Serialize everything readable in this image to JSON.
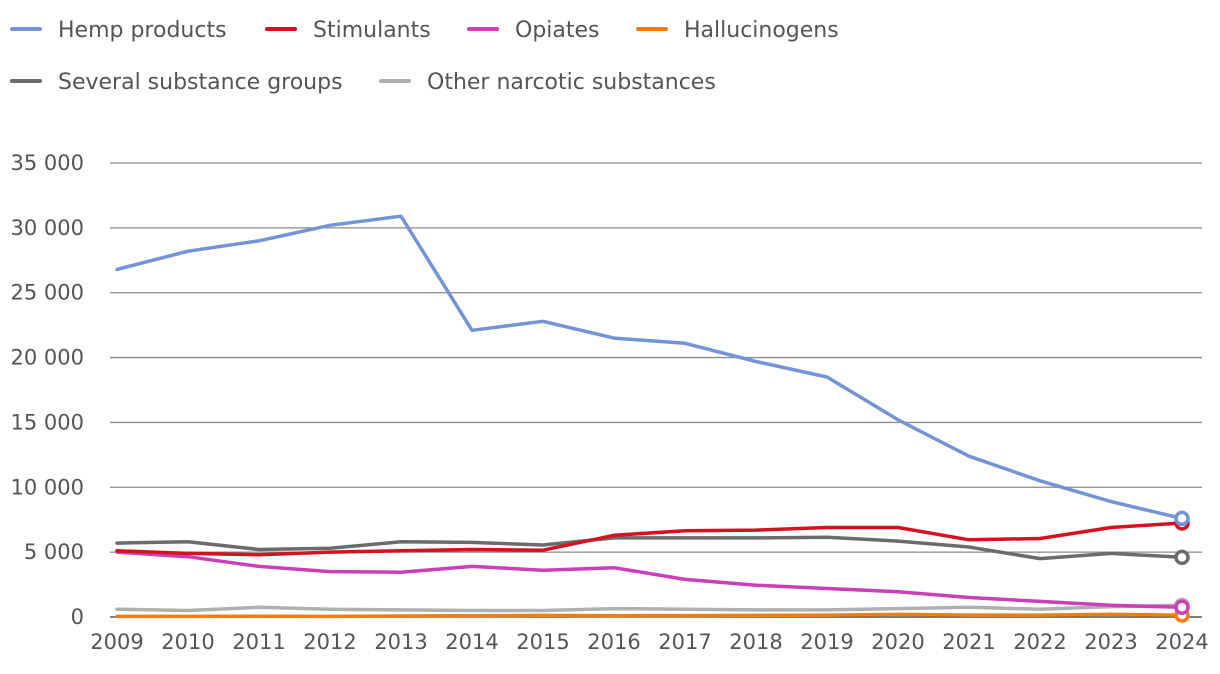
{
  "chart_data": {
    "type": "line",
    "title": "",
    "xlabel": "",
    "ylabel": "",
    "x": [
      "2009",
      "2010",
      "2011",
      "2012",
      "2013",
      "2014",
      "2015",
      "2016",
      "2017",
      "2018",
      "2019",
      "2020",
      "2021",
      "2022",
      "2023",
      "2024"
    ],
    "ylim": [
      0,
      35000
    ],
    "yticks": [
      0,
      5000,
      10000,
      15000,
      20000,
      25000,
      30000,
      35000
    ],
    "ytick_labels": [
      "0",
      "5 000",
      "10 000",
      "15 000",
      "20 000",
      "25 000",
      "30 000",
      "35 000"
    ],
    "grid": true,
    "legend_position": "top-left",
    "series": [
      {
        "name": "Hemp products",
        "color": "#7394d6",
        "values": [
          26800,
          28200,
          29000,
          30200,
          30900,
          22100,
          22800,
          21500,
          21100,
          19700,
          18500,
          15200,
          12400,
          10500,
          8900,
          7600
        ]
      },
      {
        "name": "Stimulants",
        "color": "#d6111f",
        "values": [
          5100,
          4900,
          4800,
          5000,
          5100,
          5200,
          5150,
          6300,
          6650,
          6700,
          6900,
          6900,
          5950,
          6050,
          6900,
          7250
        ]
      },
      {
        "name": "Opiates",
        "color": "#cc3fb6",
        "values": [
          5000,
          4650,
          3900,
          3500,
          3450,
          3900,
          3600,
          3800,
          2900,
          2450,
          2200,
          1950,
          1500,
          1200,
          900,
          750
        ]
      },
      {
        "name": "Hallucinogens",
        "color": "#f07d10",
        "values": [
          50,
          50,
          60,
          50,
          80,
          90,
          120,
          100,
          110,
          120,
          150,
          200,
          150,
          150,
          200,
          150
        ]
      },
      {
        "name": "Several substance groups",
        "color": "#6b6b6b",
        "values": [
          5700,
          5800,
          5200,
          5300,
          5800,
          5750,
          5550,
          6100,
          6100,
          6100,
          6150,
          5850,
          5400,
          4500,
          4900,
          4600
        ]
      },
      {
        "name": "Other narcotic substances",
        "color": "#b0b0b0",
        "values": [
          600,
          500,
          750,
          600,
          550,
          500,
          500,
          650,
          600,
          550,
          550,
          650,
          750,
          600,
          800,
          900
        ]
      }
    ]
  }
}
